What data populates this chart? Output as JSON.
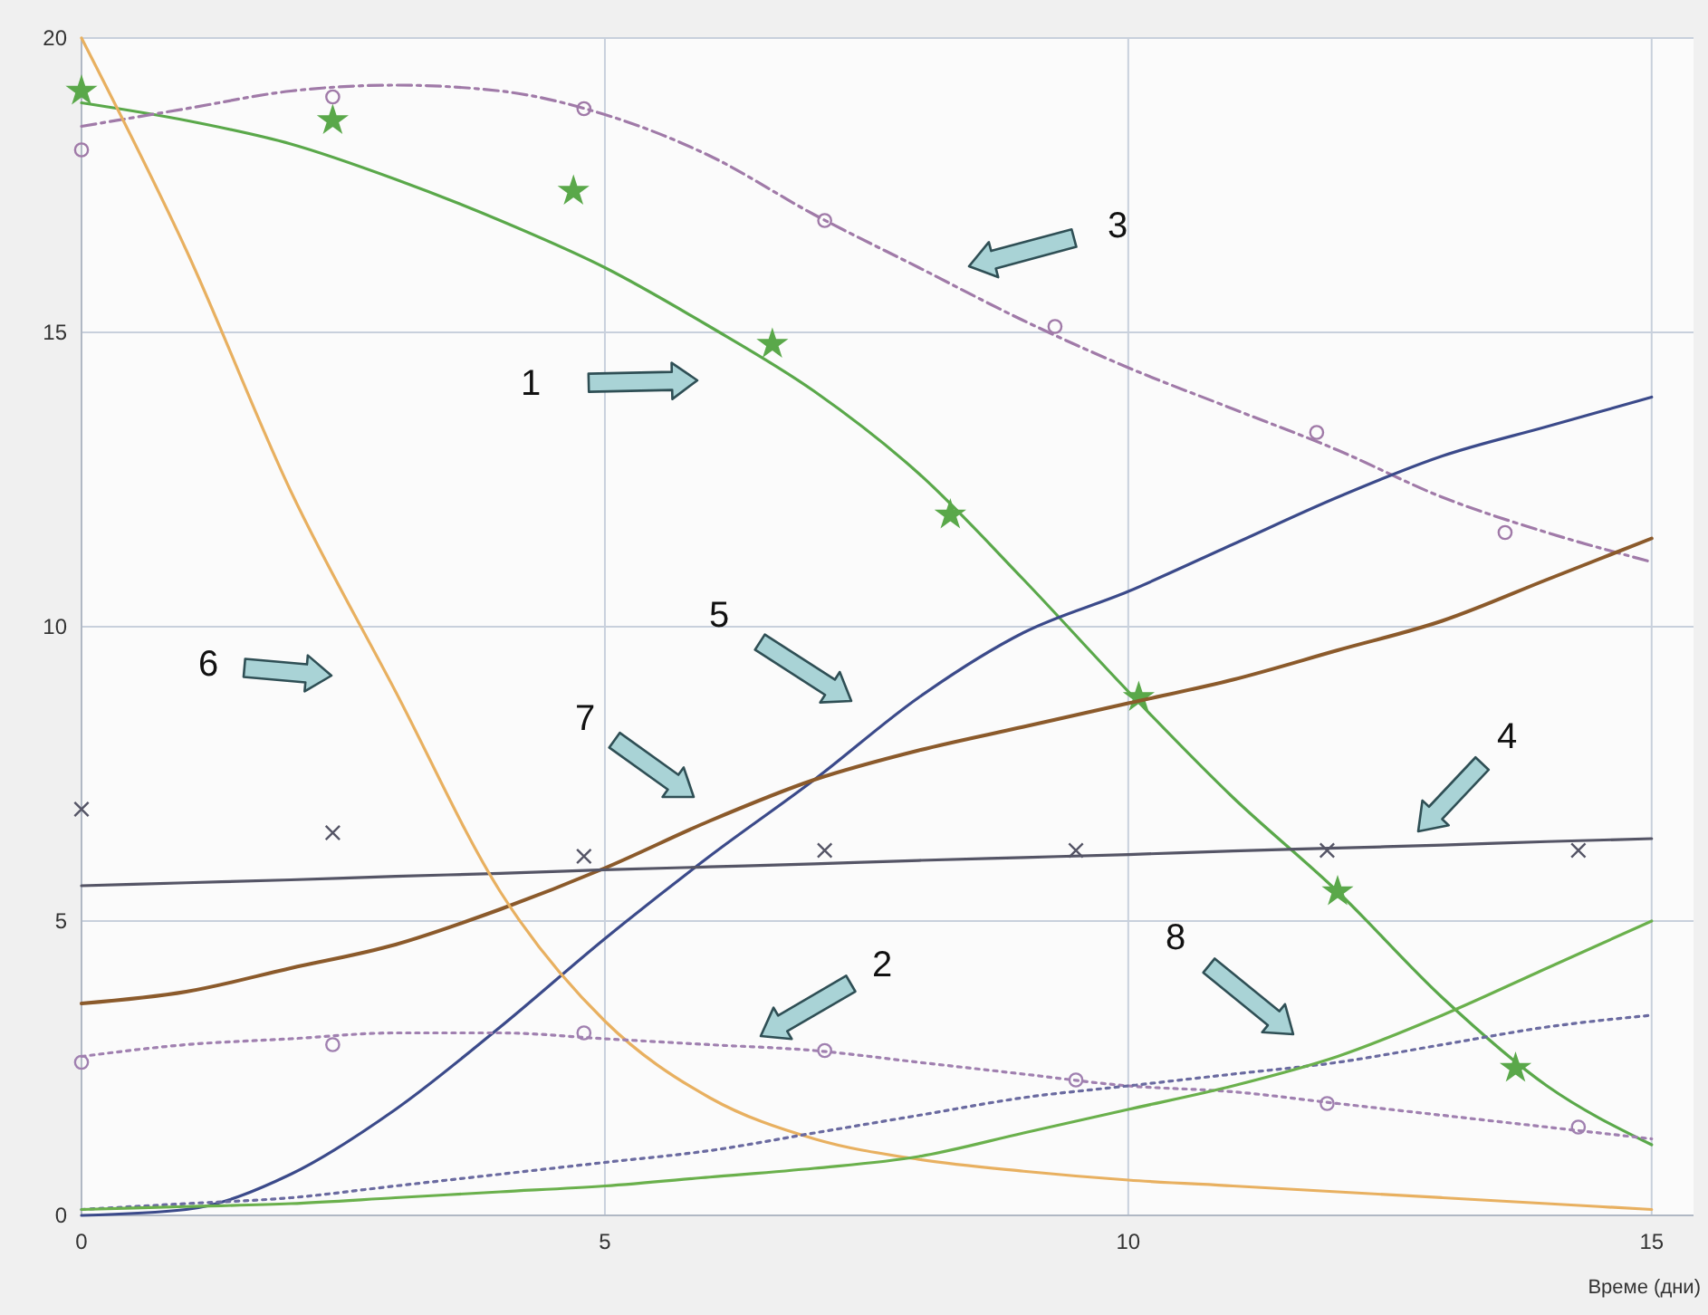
{
  "chart_data": {
    "type": "line",
    "xlabel": "Време (дни)",
    "x": [
      0,
      1,
      2,
      3,
      4,
      5,
      6,
      7,
      8,
      9,
      10,
      11,
      12,
      13,
      14,
      15
    ],
    "xlim": [
      0,
      15.4
    ],
    "ylim": [
      0,
      20
    ],
    "xticks": [
      0,
      5,
      10,
      15
    ],
    "yticks": [
      0,
      5,
      10,
      15,
      20
    ],
    "grid": true,
    "marker": "none",
    "line_style": "solid",
    "series": [
      {
        "color": "#5aa84a",
        "values": [
          18.9,
          18.6,
          18.2,
          17.6,
          16.9,
          16.1,
          15.1,
          14.0,
          12.6,
          10.8,
          8.9,
          7.1,
          5.5,
          3.7,
          2.2,
          1.2
        ]
      },
      {
        "type": "scatter",
        "marker": "star",
        "color": "#5aa84a",
        "x": [
          0,
          2.4,
          4.7,
          6.6,
          8.3,
          10.1,
          12,
          13.7
        ],
        "values": [
          19.1,
          18.6,
          17.4,
          14.8,
          11.9,
          8.8,
          5.5,
          2.5
        ]
      },
      {
        "color": "#a07aa8",
        "line_style": "dashed",
        "values": [
          18.5,
          18.8,
          19.1,
          19.2,
          19.1,
          18.7,
          18.0,
          17.0,
          16.1,
          15.2,
          14.4,
          13.7,
          13.0,
          12.2,
          11.6,
          11.1
        ]
      },
      {
        "type": "scatter",
        "marker": "circle",
        "color": "#a07aa8",
        "x": [
          0,
          2.4,
          4.8,
          7.1,
          9.3,
          11.8,
          13.6
        ],
        "values": [
          18.1,
          19.0,
          18.8,
          16.9,
          15.1,
          13.3,
          11.6
        ]
      },
      {
        "color": "#3b4a8a",
        "values": [
          0,
          0.1,
          0.7,
          1.8,
          3.2,
          4.7,
          6.1,
          7.4,
          8.8,
          9.9,
          10.6,
          11.4,
          12.2,
          12.9,
          13.4,
          13.9
        ]
      },
      {
        "color": "#8b5a2b",
        "values": [
          3.6,
          3.8,
          4.2,
          4.6,
          5.2,
          5.9,
          6.7,
          7.4,
          7.9,
          8.3,
          8.7,
          9.1,
          9.6,
          10.1,
          10.8,
          11.5
        ]
      },
      {
        "color": "#555566",
        "values": [
          5.6,
          5.65,
          5.7,
          5.76,
          5.81,
          5.87,
          5.92,
          5.97,
          6.03,
          6.08,
          6.13,
          6.19,
          6.24,
          6.29,
          6.35,
          6.4
        ]
      },
      {
        "type": "scatter",
        "marker": "cross",
        "color": "#555566",
        "x": [
          0,
          2.4,
          4.8,
          7.1,
          9.5,
          11.9,
          14.3
        ],
        "values": [
          6.9,
          6.5,
          6.1,
          6.2,
          6.2,
          6.2,
          6.2
        ]
      },
      {
        "color": "#e8b060",
        "values": [
          20,
          16.4,
          12.3,
          8.9,
          5.5,
          3.3,
          2.0,
          1.3,
          0.95,
          0.75,
          0.6,
          0.5,
          0.4,
          0.3,
          0.2,
          0.1
        ]
      },
      {
        "color": "#a080b0",
        "line_style": "dotted",
        "values": [
          2.7,
          2.9,
          3.0,
          3.1,
          3.1,
          3.0,
          2.9,
          2.8,
          2.6,
          2.4,
          2.2,
          2.1,
          1.9,
          1.7,
          1.5,
          1.3
        ]
      },
      {
        "type": "scatter",
        "marker": "circle",
        "color": "#a080b0",
        "x": [
          0,
          2.4,
          4.8,
          7.1,
          9.5,
          11.9,
          14.3
        ],
        "values": [
          2.6,
          2.9,
          3.1,
          2.8,
          2.3,
          1.9,
          1.5
        ]
      },
      {
        "color": "#6a6aa0",
        "line_style": "dotted",
        "values": [
          0.1,
          0.2,
          0.3,
          0.5,
          0.7,
          0.9,
          1.1,
          1.4,
          1.7,
          2.0,
          2.2,
          2.4,
          2.6,
          2.9,
          3.2,
          3.4
        ]
      },
      {
        "color": "#6ab04c",
        "values": [
          0.1,
          0.15,
          0.2,
          0.3,
          0.4,
          0.5,
          0.65,
          0.8,
          1.0,
          1.4,
          1.8,
          2.2,
          2.7,
          3.4,
          4.2,
          5.0
        ]
      }
    ],
    "annotations": [
      "1",
      "2",
      "3",
      "4",
      "5",
      "6",
      "7",
      "8"
    ]
  }
}
